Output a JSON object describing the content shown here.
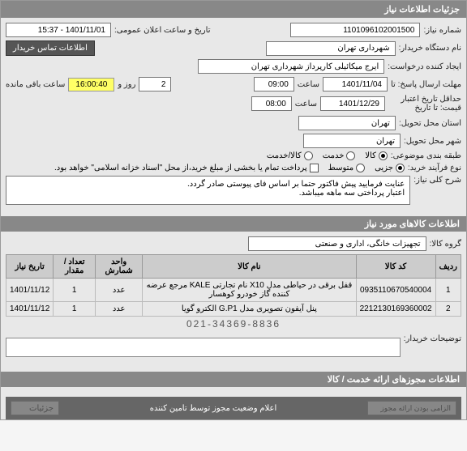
{
  "header": "جزئیات اطلاعات نیاز",
  "req_no_label": "شماره نیاز:",
  "req_no": "1101096102001500",
  "ann_label": "تاریخ و ساعت اعلان عمومی:",
  "ann_value": "1401/11/01 - 15:37",
  "buyer_label": "نام دستگاه خریدار:",
  "buyer": "شهرداری تهران",
  "contact_btn": "اطلاعات تماس خریدار",
  "requester_label": "ایجاد کننده درخواست:",
  "requester": "ایرج میکائیلی کارپرداز شهرداری تهران",
  "deadline_label": "مهلت ارسال پاسخ: تا",
  "deadline_date": "1401/11/04",
  "time_label": "ساعت",
  "deadline_time": "09:00",
  "days_label": "روز و",
  "days": "2",
  "timer": "16:00:40",
  "remaining_label": "ساعت باقی مانده",
  "valid_label": "حداقل تاریخ اعتبار قیمت: تا تاریخ",
  "valid_date": "1401/12/29",
  "valid_time": "08:00",
  "province_label": "استان محل تحویل:",
  "province": "تهران",
  "city_label": "شهر محل تحویل:",
  "city": "تهران",
  "class_label": "طبقه بندی موضوعی:",
  "class_opts": {
    "goods": "کالا",
    "service": "خدمت",
    "both": "کالا/خدمت"
  },
  "buytype_label": "نوع فرآیند خرید:",
  "buytype_opts": {
    "partial": "جزیی",
    "medium": "متوسط",
    "full_desc": "پرداخت تمام یا بخشی از مبلغ خرید،از محل \"اسناد خزانه اسلامی\" خواهد بود."
  },
  "desc_label": "شرح کلی نیاز:",
  "desc_text": "عنایت فرمایید پیش فاکتور حتما بر اساس فای پیوستی صادر گردد.\nاعتبار پرداختی سه ماهه میباشد.",
  "goods_header": "اطلاعات کالاهای مورد نیاز",
  "group_label": "گروه کالا:",
  "group_value": "تجهیزات خانگی، اداری و صنعتی",
  "table": {
    "cols": [
      "ردیف",
      "کد کالا",
      "نام کالا",
      "واحد شمارش",
      "تعداد / مقدار",
      "تاریخ نیاز"
    ],
    "rows": [
      [
        "1",
        "0935110670540004",
        "قفل برقی در حیاطی مدل X10 نام تجارتی KALE مرجع عرضه کننده گاز خودرو کوهسار",
        "عدد",
        "1",
        "1401/11/12"
      ],
      [
        "2",
        "2212130169360002",
        "پنل آیفون تصویری مدل G.P1 الکترو گویا",
        "عدد",
        "1",
        "1401/11/12"
      ]
    ]
  },
  "phone": "021-34369-8836",
  "buyer_notes_label": "توضیحات خریدار:",
  "license_header": "اطلاعات مجوزهای ارائه خدمت / کالا",
  "mandatory_label": "الزامی بودن ارائه مجوز",
  "mid_label": "اعلام وضعیت مجوز توسط تامین کننده",
  "details_btn": "جزئیات"
}
